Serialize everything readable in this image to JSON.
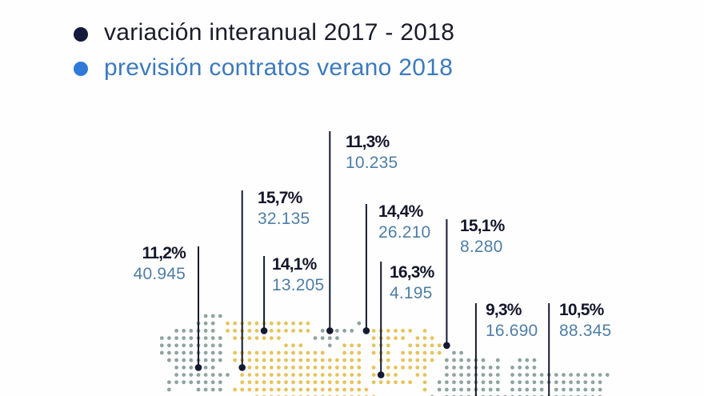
{
  "legend": {
    "items": [
      {
        "label": "variación interanual 2017 - 2018",
        "dot_color": "#141a3c",
        "text_color": "#1b1d2b"
      },
      {
        "label": "previsión contratos verano 2018",
        "dot_color": "#2f7ad9",
        "text_color": "#3d7abb"
      }
    ]
  },
  "map": {
    "region_colors": {
      "gray": "#8ea4a0",
      "yellow": "#e6c35c"
    },
    "marker_color": "#141a30",
    "percent_color": "#13172a",
    "value_color": "#4f7ea6",
    "callouts": [
      {
        "variation": "11,2%",
        "contracts": "40.945"
      },
      {
        "variation": "15,7%",
        "contracts": "32.135"
      },
      {
        "variation": "14,1%",
        "contracts": "13.205"
      },
      {
        "variation": "11,3%",
        "contracts": "10.235"
      },
      {
        "variation": "14,4%",
        "contracts": "26.210"
      },
      {
        "variation": "16,3%",
        "contracts": "4.195"
      },
      {
        "variation": "15,1%",
        "contracts": "8.280"
      },
      {
        "variation": "9,3%",
        "contracts": "16.690"
      },
      {
        "variation": "10,5%",
        "contracts": "88.345"
      }
    ]
  }
}
